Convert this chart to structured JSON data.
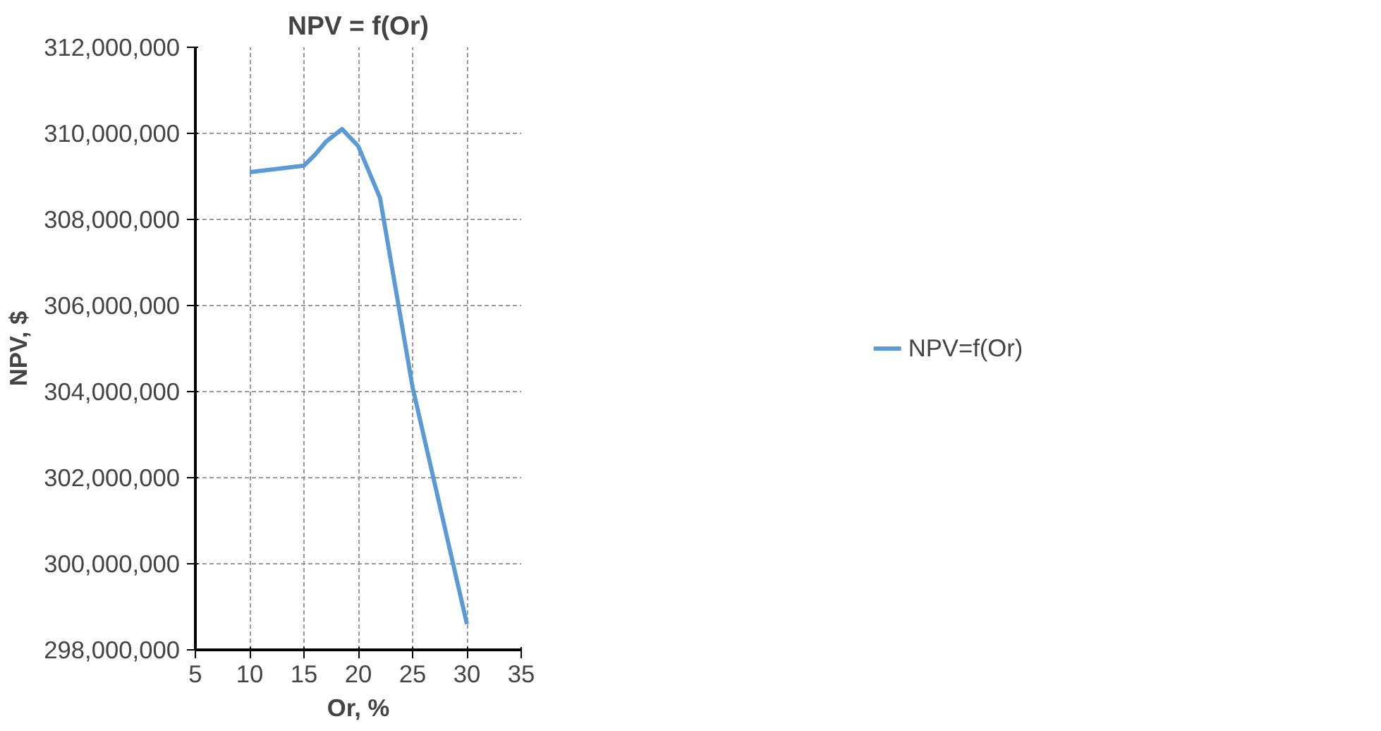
{
  "chart_data": {
    "type": "line",
    "title": "NPV = f(Or)",
    "xlabel": "Or, %",
    "ylabel": "NPV, $",
    "x": [
      10,
      15,
      16,
      17,
      18.5,
      20,
      22,
      25,
      30
    ],
    "series": [
      {
        "name": "NPV=f(Or)",
        "color": "#5b9bd5",
        "values": [
          309100000,
          309250000,
          309500000,
          309800000,
          310100000,
          309700000,
          308500000,
          304100000,
          298600000
        ]
      }
    ],
    "xlim": [
      5,
      35
    ],
    "xticks": [
      5,
      10,
      15,
      20,
      25,
      30,
      35
    ],
    "ylim": [
      298000000,
      312000000
    ],
    "yticks": [
      {
        "value": 298000000,
        "label": "298,000,000"
      },
      {
        "value": 300000000,
        "label": "300,000,000"
      },
      {
        "value": 302000000,
        "label": "302,000,000"
      },
      {
        "value": 304000000,
        "label": "304,000,000"
      },
      {
        "value": 306000000,
        "label": "306,000,000"
      },
      {
        "value": 308000000,
        "label": "308,000,000"
      },
      {
        "value": 310000000,
        "label": "310,000,000"
      },
      {
        "value": 312000000,
        "label": "312,000,000"
      }
    ],
    "grid": true,
    "legend": "right",
    "marker": "none",
    "line_style": "solid"
  }
}
